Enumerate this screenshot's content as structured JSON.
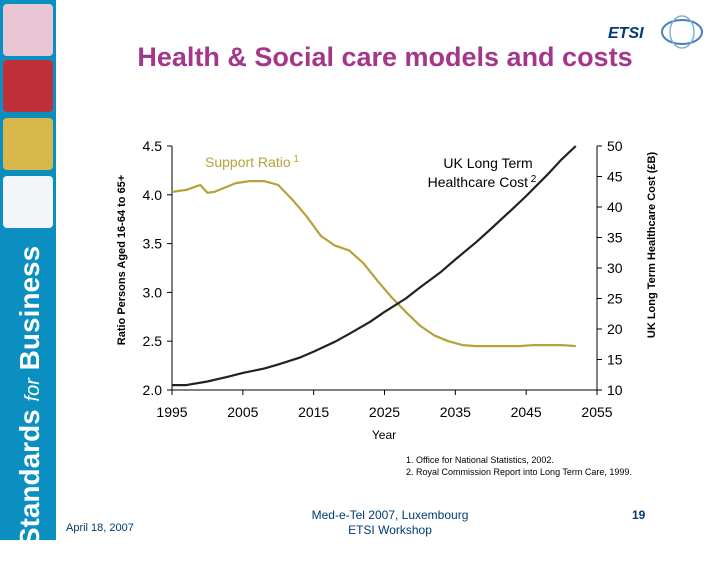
{
  "slide": {
    "title": "Health & Social care models and costs",
    "sidebar_text_main": "Standards",
    "sidebar_text_for": "for",
    "sidebar_text_end": "Business",
    "logo_text": "ETSI",
    "footnotes": [
      "1.   Office for National Statistics, 2002.",
      "2.   Royal Commission Report into Long Term Care, 1999."
    ],
    "footer_date": "April 18, 2007",
    "footer_event_line1": "Med-e-Tel 2007, Luxembourg",
    "footer_event_line2": "ETSI Workshop",
    "page_number": "19"
  },
  "colors": {
    "title": "#a3378c",
    "sidebar": "#0a8fc0",
    "support_ratio_line": "#b7a23a",
    "cost_line": "#222222",
    "footer_text": "#003b73"
  },
  "chart_data": {
    "type": "line",
    "title": "",
    "xlabel": "Year",
    "ylabel_left": "Ratio Persons Aged 16-64 to 65+",
    "ylabel_right": "UK Long Term Healthcare Cost (£B)",
    "xlim": [
      1995,
      2055
    ],
    "x_ticks": [
      1995,
      2005,
      2015,
      2025,
      2035,
      2045,
      2055
    ],
    "x_tick_labels": [
      "1995",
      "2005",
      "2015",
      "2025",
      "2035",
      "2045",
      "2055"
    ],
    "ylim_left": [
      2.0,
      4.5
    ],
    "y_left_ticks": [
      2.0,
      2.5,
      3.0,
      3.5,
      4.0,
      4.5
    ],
    "y_left_tick_labels": [
      "2.0",
      "2.5",
      "3.0",
      "3.5",
      "4.0",
      "4.5"
    ],
    "ylim_right": [
      10,
      50
    ],
    "y_right_ticks": [
      10,
      15,
      20,
      25,
      30,
      35,
      40,
      45,
      50
    ],
    "y_right_tick_labels": [
      "10",
      "15",
      "20",
      "25",
      "30",
      "35",
      "40",
      "45",
      "50"
    ],
    "series": [
      {
        "name": "Support Ratio",
        "label": "Support Ratio",
        "superscript": "1",
        "axis": "left",
        "color": "#b7a23a",
        "x": [
          1995,
          1997,
          1999,
          2000,
          2001,
          2002,
          2004,
          2006,
          2008,
          2010,
          2012,
          2014,
          2016,
          2018,
          2020,
          2022,
          2024,
          2026,
          2028,
          2030,
          2032,
          2034,
          2036,
          2038,
          2040,
          2042,
          2044,
          2046,
          2048,
          2050,
          2052
        ],
        "values": [
          4.03,
          4.05,
          4.1,
          4.02,
          4.03,
          4.06,
          4.12,
          4.14,
          4.14,
          4.1,
          3.95,
          3.78,
          3.58,
          3.48,
          3.43,
          3.3,
          3.12,
          2.95,
          2.8,
          2.66,
          2.56,
          2.5,
          2.46,
          2.45,
          2.45,
          2.45,
          2.45,
          2.46,
          2.46,
          2.46,
          2.45
        ]
      },
      {
        "name": "UK Long Term Healthcare Cost",
        "label_line1": "UK Long Term",
        "label_line2": "Healthcare Cost",
        "superscript": "2",
        "axis": "right",
        "color": "#222222",
        "x": [
          1995,
          1997,
          2000,
          2003,
          2005,
          2008,
          2010,
          2013,
          2015,
          2018,
          2020,
          2023,
          2025,
          2028,
          2030,
          2033,
          2035,
          2038,
          2040,
          2043,
          2045,
          2048,
          2050,
          2052
        ],
        "values": [
          10.8,
          10.8,
          11.4,
          12.2,
          12.8,
          13.5,
          14.2,
          15.3,
          16.3,
          17.9,
          19.2,
          21.2,
          22.8,
          25.0,
          26.8,
          29.4,
          31.4,
          34.3,
          36.4,
          39.6,
          41.8,
          45.3,
          47.8,
          50.0
        ]
      }
    ]
  }
}
